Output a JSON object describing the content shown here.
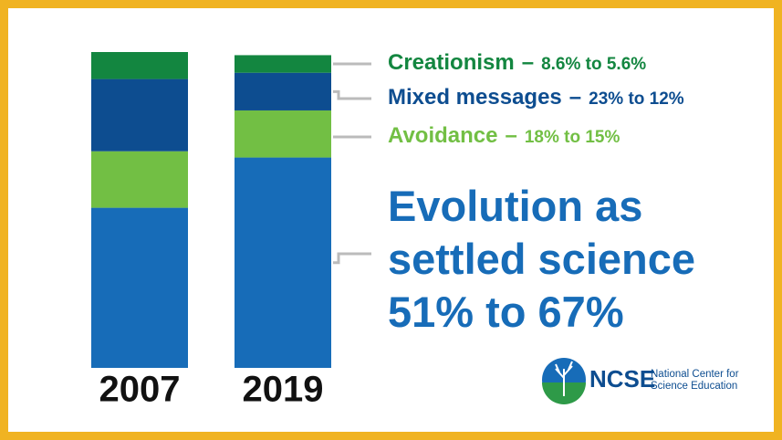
{
  "chart_data": {
    "type": "stacked-bar",
    "categories": [
      "2007",
      "2019"
    ],
    "label_separator": "–",
    "series": [
      {
        "name": "Evolution as settled science",
        "color": "#176cb8",
        "values": [
          51,
          67
        ],
        "change_label": "51% to 67%"
      },
      {
        "name": "Avoidance",
        "color": "#72bf44",
        "values": [
          18,
          15
        ],
        "change_label": "18% to 15%"
      },
      {
        "name": "Mixed messages",
        "color": "#0d4d90",
        "values": [
          23,
          12
        ],
        "change_label": "23% to 12%"
      },
      {
        "name": "Creationism",
        "color": "#138640",
        "values": [
          8.6,
          5.6
        ],
        "change_label": "8.6% to 5.6%"
      }
    ]
  },
  "logo": {
    "name": "NCSE",
    "tagline": [
      "National Center for",
      "Science Education"
    ]
  }
}
